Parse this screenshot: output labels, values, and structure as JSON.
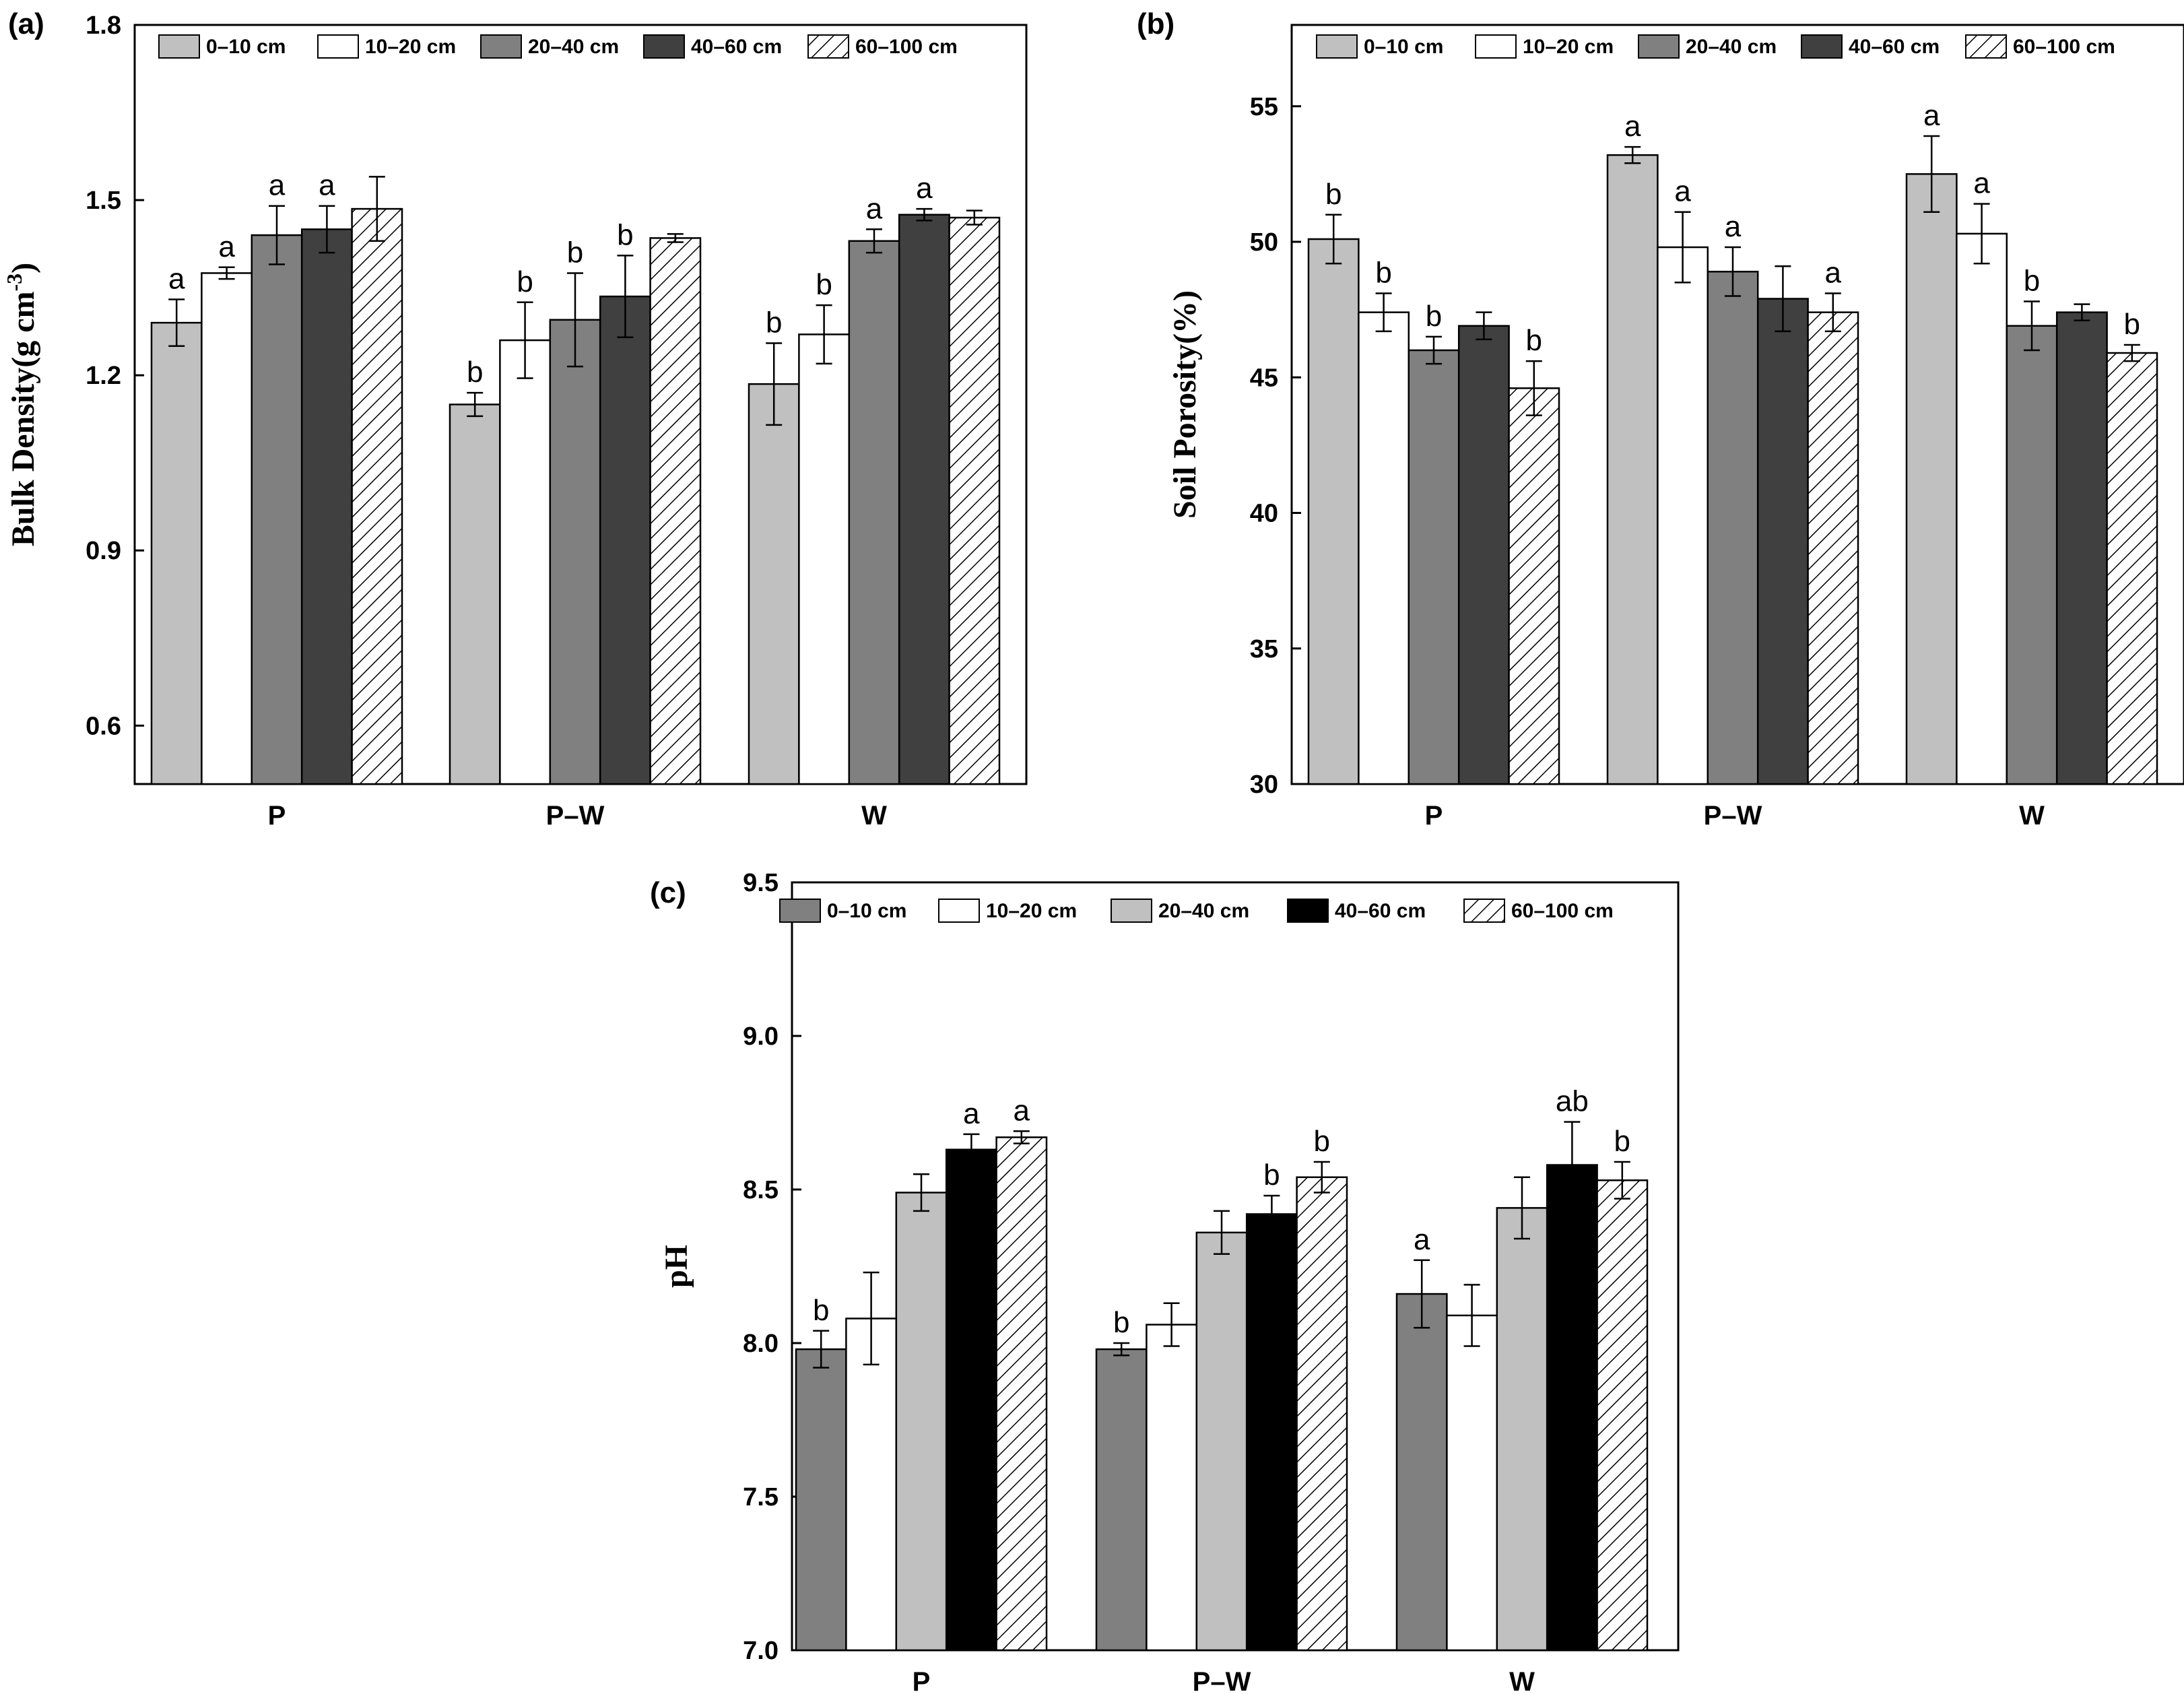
{
  "chart_data": [
    {
      "type": "bar",
      "panel_label": "(a)",
      "ylabel": "Bulk Density(g cm",
      "ylabel_sup": "-3",
      "ylabel_close": ")",
      "ylim": [
        0.5,
        1.8
      ],
      "yticks": [
        "0.6",
        "0.9",
        "1.2",
        "1.5",
        "1.8"
      ],
      "categories": [
        "P",
        "P–W",
        "W"
      ],
      "legend_position": "top",
      "series": [
        {
          "name": "0–10 cm",
          "fill": "#c0c0c0",
          "values": [
            1.29,
            1.15,
            1.185
          ],
          "errors": [
            0.04,
            0.02,
            0.07
          ],
          "letters": [
            "a",
            "b",
            "b"
          ]
        },
        {
          "name": "10–20 cm",
          "fill": "#ffffff",
          "values": [
            1.375,
            1.26,
            1.27
          ],
          "errors": [
            0.01,
            0.065,
            0.05
          ],
          "letters": [
            "a",
            "b",
            "b"
          ]
        },
        {
          "name": "20–40 cm",
          "fill": "#808080",
          "values": [
            1.44,
            1.295,
            1.43
          ],
          "errors": [
            0.05,
            0.08,
            0.02
          ],
          "letters": [
            "a",
            "b",
            "a"
          ]
        },
        {
          "name": "40–60 cm",
          "fill": "#404040",
          "values": [
            1.45,
            1.335,
            1.475
          ],
          "errors": [
            0.04,
            0.07,
            0.01
          ],
          "letters": [
            "a",
            "b",
            "a"
          ]
        },
        {
          "name": "60–100 cm",
          "fill": "hatch",
          "values": [
            1.485,
            1.435,
            1.47
          ],
          "errors": [
            0.055,
            0.007,
            0.012
          ],
          "letters": [
            "",
            "",
            ""
          ]
        }
      ]
    },
    {
      "type": "bar",
      "panel_label": "(b)",
      "ylabel": "Soil Porosity(%)",
      "ylabel_sup": "",
      "ylabel_close": "",
      "ylim": [
        30,
        58
      ],
      "yticks": [
        "30",
        "35",
        "40",
        "45",
        "50",
        "55"
      ],
      "categories": [
        "P",
        "P–W",
        "W"
      ],
      "legend_position": "top",
      "series": [
        {
          "name": "0–10 cm",
          "fill": "#c0c0c0",
          "values": [
            50.1,
            53.2,
            52.5
          ],
          "errors": [
            0.9,
            0.3,
            1.4
          ],
          "letters": [
            "b",
            "a",
            "a"
          ]
        },
        {
          "name": "10–20 cm",
          "fill": "#ffffff",
          "values": [
            47.4,
            49.8,
            50.3
          ],
          "errors": [
            0.7,
            1.3,
            1.1
          ],
          "letters": [
            "b",
            "a",
            "a"
          ]
        },
        {
          "name": "20–40 cm",
          "fill": "#808080",
          "values": [
            46.0,
            48.9,
            46.9
          ],
          "errors": [
            0.5,
            0.9,
            0.9
          ],
          "letters": [
            "b",
            "a",
            "b"
          ]
        },
        {
          "name": "40–60 cm",
          "fill": "#404040",
          "values": [
            46.9,
            47.9,
            47.4
          ],
          "errors": [
            0.5,
            1.2,
            0.3
          ],
          "letters": [
            "",
            "",
            ""
          ]
        },
        {
          "name": "60–100 cm",
          "fill": "hatch",
          "values": [
            44.6,
            47.4,
            45.9
          ],
          "errors": [
            1.0,
            0.7,
            0.3
          ],
          "letters": [
            "b",
            "a",
            "b"
          ]
        }
      ]
    },
    {
      "type": "bar",
      "panel_label": "(c)",
      "ylabel": "pH",
      "ylabel_sup": "",
      "ylabel_close": "",
      "ylim": [
        7.0,
        9.5
      ],
      "yticks": [
        "7.0",
        "7.5",
        "8.0",
        "8.5",
        "9.0",
        "9.5"
      ],
      "categories": [
        "P",
        "P–W",
        "W"
      ],
      "legend_position": "top",
      "series": [
        {
          "name": "0–10 cm",
          "fill": "#808080",
          "values": [
            7.98,
            7.98,
            8.16
          ],
          "errors": [
            0.06,
            0.02,
            0.11
          ],
          "letters": [
            "b",
            "b",
            "a"
          ]
        },
        {
          "name": "10–20 cm",
          "fill": "#ffffff",
          "values": [
            8.08,
            8.06,
            8.09
          ],
          "errors": [
            0.15,
            0.07,
            0.1
          ],
          "letters": [
            "",
            "",
            ""
          ]
        },
        {
          "name": "20–40 cm",
          "fill": "#c0c0c0",
          "values": [
            8.49,
            8.36,
            8.44
          ],
          "errors": [
            0.06,
            0.07,
            0.1
          ],
          "letters": [
            "",
            "",
            ""
          ]
        },
        {
          "name": "40–60 cm",
          "fill": "#000000",
          "values": [
            8.63,
            8.42,
            8.58
          ],
          "errors": [
            0.05,
            0.06,
            0.14
          ],
          "letters": [
            "a",
            "b",
            "ab"
          ]
        },
        {
          "name": "60–100 cm",
          "fill": "hatch",
          "values": [
            8.67,
            8.54,
            8.53
          ],
          "errors": [
            0.02,
            0.05,
            0.06
          ],
          "letters": [
            "a",
            "b",
            "b"
          ]
        }
      ]
    }
  ]
}
